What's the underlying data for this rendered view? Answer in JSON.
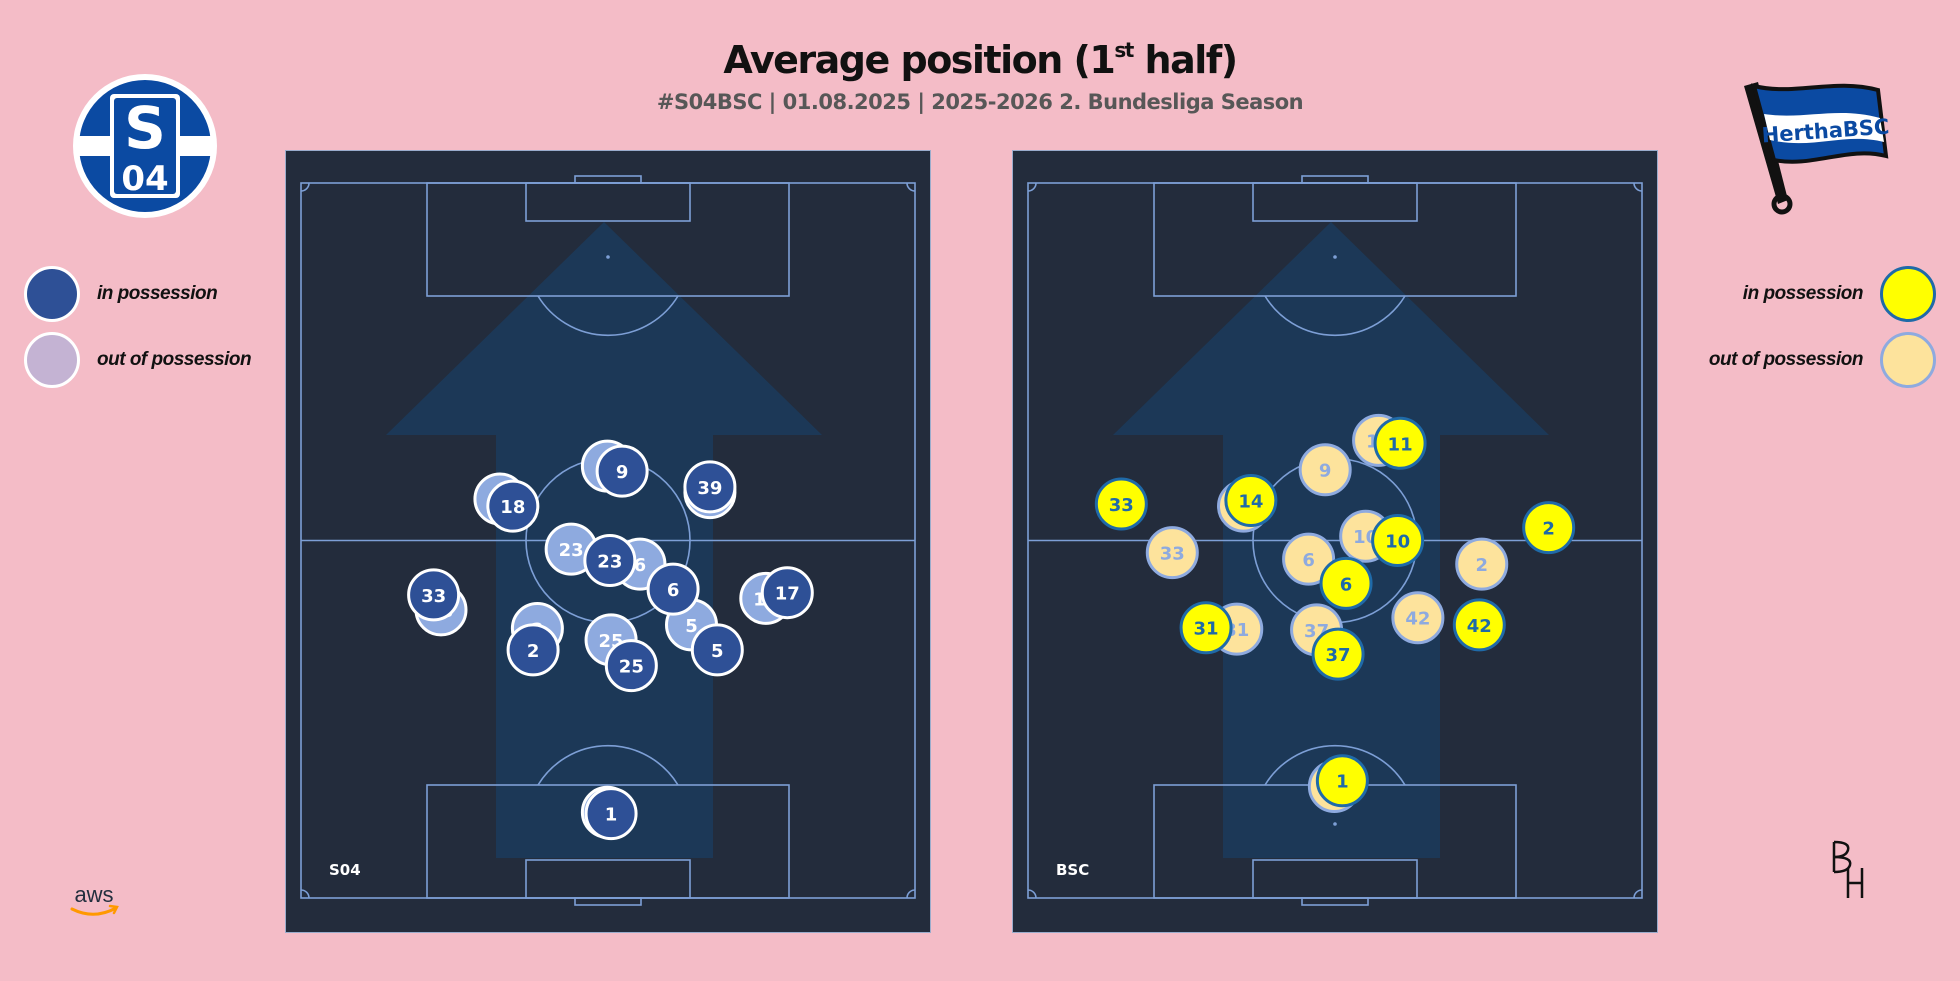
{
  "header": {
    "title_main": "Average position (1",
    "title_sup": "st",
    "title_end": " half)",
    "subtitle": "#S04BSC | 01.08.2025 | 2025-2026 2. Bundesliga Season"
  },
  "legend": {
    "in_possession": "in possession",
    "out_of_possession": "out of possession"
  },
  "colors": {
    "background": "#f4bcc7",
    "pitch": "#232c3c",
    "pitch_lines": "#7d9fd6",
    "arrow": "#1c3a5a",
    "home_in": "#2e5096",
    "home_out": "#8eaadf",
    "away_in": "#ffff00",
    "away_out": "#fde39c",
    "away_text": "#1f6aa8"
  },
  "logos": {
    "home_crest": "schalke-04-crest",
    "away_crest": "hertha-bsc-flag",
    "home_crest_text": "S04",
    "away_crest_text": "HerthaBSC",
    "sponsor": "aws-logo",
    "sponsor_text": "aws",
    "author_mark": "BH-monogram"
  },
  "chart_data": [
    {
      "type": "scatter",
      "team": "S04",
      "coords_note": "x: 0-100 left to right across pitch width, y: 0-100 from top (opponent) goal line to bottom (own) goal line",
      "series": [
        {
          "name": "in possession",
          "points": [
            {
              "label": "1",
              "x": 50.5,
              "y": 88.2
            },
            {
              "label": "2",
              "x": 37.8,
              "y": 65.3
            },
            {
              "label": "5",
              "x": 67.8,
              "y": 65.3
            },
            {
              "label": "6",
              "x": 60.6,
              "y": 56.8
            },
            {
              "label": "9",
              "x": 52.3,
              "y": 40.3
            },
            {
              "label": "17",
              "x": 79.2,
              "y": 57.3
            },
            {
              "label": "18",
              "x": 34.5,
              "y": 45.2
            },
            {
              "label": "23",
              "x": 50.3,
              "y": 52.8
            },
            {
              "label": "25",
              "x": 53.8,
              "y": 67.5
            },
            {
              "label": "33",
              "x": 21.6,
              "y": 57.6
            },
            {
              "label": "39",
              "x": 66.6,
              "y": 42.5
            }
          ]
        },
        {
          "name": "out of possession",
          "points": [
            {
              "label": "1",
              "x": 49.9,
              "y": 88.0
            },
            {
              "label": "2",
              "x": 38.5,
              "y": 62.3
            },
            {
              "label": "5",
              "x": 63.6,
              "y": 61.8
            },
            {
              "label": "6",
              "x": 55.2,
              "y": 53.3
            },
            {
              "label": "9",
              "x": 49.9,
              "y": 39.6
            },
            {
              "label": "17",
              "x": 75.7,
              "y": 58.1
            },
            {
              "label": "18",
              "x": 32.4,
              "y": 44.2
            },
            {
              "label": "23",
              "x": 44.0,
              "y": 51.2
            },
            {
              "label": "25",
              "x": 50.5,
              "y": 63.9
            },
            {
              "label": "33",
              "x": 22.8,
              "y": 59.7
            },
            {
              "label": "39",
              "x": 66.6,
              "y": 43.3
            }
          ]
        }
      ]
    },
    {
      "type": "scatter",
      "team": "BSC",
      "coords_note": "x: 0-100 left to right across pitch width, y: 0-100 from top (opponent) goal line to bottom (own) goal line",
      "series": [
        {
          "name": "in possession",
          "points": [
            {
              "label": "1",
              "x": 51.2,
              "y": 83.6
            },
            {
              "label": "2",
              "x": 84.8,
              "y": 48.2
            },
            {
              "label": "6",
              "x": 51.8,
              "y": 56.0
            },
            {
              "label": "10",
              "x": 60.2,
              "y": 50.0
            },
            {
              "label": "11",
              "x": 60.6,
              "y": 36.4
            },
            {
              "label": "14",
              "x": 36.3,
              "y": 44.4
            },
            {
              "label": "31",
              "x": 29.0,
              "y": 62.2
            },
            {
              "label": "33",
              "x": 15.2,
              "y": 44.9
            },
            {
              "label": "37",
              "x": 50.5,
              "y": 65.9
            },
            {
              "label": "42",
              "x": 73.5,
              "y": 61.8
            }
          ]
        },
        {
          "name": "out of possession",
          "points": [
            {
              "label": "1",
              "x": 49.9,
              "y": 84.4
            },
            {
              "label": "2",
              "x": 73.9,
              "y": 53.3
            },
            {
              "label": "6",
              "x": 45.7,
              "y": 52.6
            },
            {
              "label": "9",
              "x": 48.4,
              "y": 40.1
            },
            {
              "label": "10",
              "x": 55.0,
              "y": 49.4
            },
            {
              "label": "11",
              "x": 57.1,
              "y": 36.0
            },
            {
              "label": "14",
              "x": 35.1,
              "y": 45.2
            },
            {
              "label": "31",
              "x": 34.0,
              "y": 62.4
            },
            {
              "label": "33",
              "x": 23.5,
              "y": 51.7
            },
            {
              "label": "37",
              "x": 47.0,
              "y": 62.5
            },
            {
              "label": "42",
              "x": 63.5,
              "y": 60.8
            }
          ]
        }
      ]
    }
  ],
  "pitches": [
    {
      "team_label": "S04"
    },
    {
      "team_label": "BSC"
    }
  ]
}
